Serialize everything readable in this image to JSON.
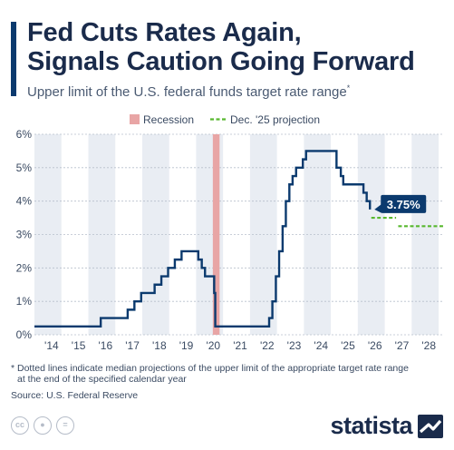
{
  "header": {
    "title_line1": "Fed Cuts Rates Again,",
    "title_line2": "Signals Caution Going Forward",
    "subtitle": "Upper limit of the U.S. federal funds target rate range",
    "subtitle_mark": "*"
  },
  "footer": {
    "footnote_line1": "* Dotted lines indicate median projections of the upper limit of the appropriate target rate range",
    "footnote_line2": "at the end of the specified calendar year",
    "source": "Source: U.S. Federal Reserve",
    "brand": "statista",
    "license_icons": [
      "cc-icon",
      "person-icon",
      "equals-icon"
    ]
  },
  "colors": {
    "line": "#0b3a6e",
    "recession": "#e8a5a5",
    "projection": "#58b82f",
    "band": "#e9edf3",
    "callout": "#0b3a6e"
  },
  "chart_data": {
    "type": "line",
    "x_unit": "year",
    "xlim": [
      2013.5,
      2028.7
    ],
    "ylim": [
      0,
      6
    ],
    "y_ticks": [
      "0%",
      "1%",
      "2%",
      "3%",
      "4%",
      "5%",
      "6%"
    ],
    "x_ticks": [
      "'14",
      "'15",
      "'16",
      "'17",
      "'18",
      "'19",
      "'20",
      "'21",
      "'22",
      "'23",
      "'24",
      "'25",
      "'26",
      "'27",
      "'28"
    ],
    "grid": true,
    "legend_position": "top-center",
    "legend": [
      {
        "name": "Recession",
        "style": "box"
      },
      {
        "name": "Dec. '25 projection",
        "style": "dashed"
      }
    ],
    "recession": {
      "start": 2020.12,
      "end": 2020.37
    },
    "series": [
      {
        "name": "Upper limit of the U.S. federal funds target rate range",
        "style": "step",
        "points": [
          [
            2013.5,
            0.25
          ],
          [
            2015.96,
            0.5
          ],
          [
            2016.96,
            0.75
          ],
          [
            2017.21,
            1.0
          ],
          [
            2017.46,
            1.25
          ],
          [
            2017.96,
            1.5
          ],
          [
            2018.21,
            1.75
          ],
          [
            2018.46,
            2.0
          ],
          [
            2018.71,
            2.25
          ],
          [
            2018.96,
            2.5
          ],
          [
            2019.58,
            2.25
          ],
          [
            2019.71,
            2.0
          ],
          [
            2019.83,
            1.75
          ],
          [
            2020.17,
            1.25
          ],
          [
            2020.21,
            0.25
          ],
          [
            2022.21,
            0.5
          ],
          [
            2022.33,
            1.0
          ],
          [
            2022.46,
            1.75
          ],
          [
            2022.58,
            2.5
          ],
          [
            2022.71,
            3.25
          ],
          [
            2022.83,
            4.0
          ],
          [
            2022.96,
            4.5
          ],
          [
            2023.08,
            4.75
          ],
          [
            2023.21,
            5.0
          ],
          [
            2023.46,
            5.25
          ],
          [
            2023.58,
            5.5
          ],
          [
            2024.71,
            5.0
          ],
          [
            2024.87,
            4.75
          ],
          [
            2024.96,
            4.5
          ],
          [
            2025.71,
            4.25
          ],
          [
            2025.83,
            4.0
          ],
          [
            2025.95,
            3.75
          ]
        ]
      },
      {
        "name": "Dec. '25 projection",
        "style": "dashed",
        "segments": [
          {
            "from": 2026.0,
            "to": 2026.92,
            "value": 3.5
          },
          {
            "from": 2027.0,
            "to": 2028.7,
            "value": 3.25
          }
        ]
      }
    ],
    "annotations": [
      {
        "x": 2025.95,
        "y": 3.75,
        "label": "3.75%"
      }
    ]
  }
}
